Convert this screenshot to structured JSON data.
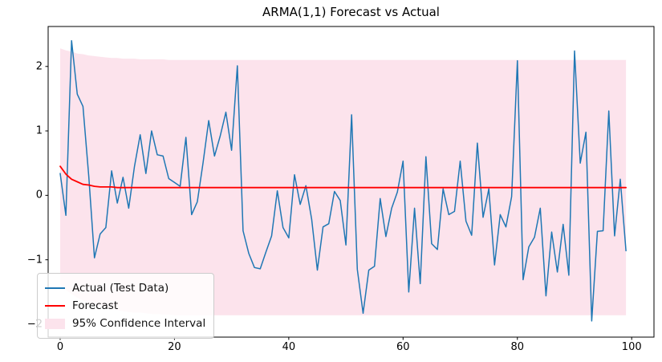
{
  "figure": {
    "title": "ARMA(1,1) Forecast vs Actual",
    "background": "#ffffff"
  },
  "colors": {
    "actual_line": "#1f77b4",
    "forecast_line": "#ff0000",
    "confidence_band": "#fce3ec",
    "axis_spine": "#000000",
    "tick_text": "#000000",
    "legend_border": "#cccccc"
  },
  "legend": {
    "items": [
      {
        "label": "Actual (Test Data)",
        "swatch": "line",
        "color": "#1f77b4"
      },
      {
        "label": "Forecast",
        "swatch": "line",
        "color": "#ff0000"
      },
      {
        "label": "95% Confidence Interval",
        "swatch": "patch",
        "color": "#fce3ec"
      }
    ]
  },
  "chart_data": {
    "type": "line",
    "title": "ARMA(1,1) Forecast vs Actual",
    "xlabel": "",
    "ylabel": "",
    "x_start": 0,
    "x_step": 1,
    "n_points": 100,
    "xlim": [
      -2.1,
      103.9
    ],
    "ylim": [
      -2.2,
      2.62
    ],
    "x_tick_values": [
      0,
      20,
      40,
      60,
      80,
      100
    ],
    "x_tick_labels": [
      "0",
      "20",
      "40",
      "60",
      "80",
      "100"
    ],
    "y_tick_values": [
      -2,
      -1,
      0,
      1,
      2
    ],
    "y_tick_labels": [
      "−2",
      "−1",
      "0",
      "1",
      "2"
    ],
    "grid": false,
    "legend_position": "lower left",
    "series": [
      {
        "name": "Actual (Test Data)",
        "type": "line",
        "color": "#1f77b4",
        "width": 1.5,
        "values": [
          0.34,
          -0.31,
          2.4,
          1.57,
          1.38,
          0.3,
          -0.97,
          -0.6,
          -0.5,
          0.38,
          -0.12,
          0.28,
          -0.2,
          0.45,
          0.94,
          0.34,
          1.0,
          0.63,
          0.61,
          0.26,
          0.2,
          0.14,
          0.9,
          -0.3,
          -0.1,
          0.5,
          1.16,
          0.61,
          0.92,
          1.29,
          0.7,
          2.01,
          -0.55,
          -0.9,
          -1.12,
          -1.14,
          -0.88,
          -0.63,
          0.07,
          -0.5,
          -0.66,
          0.32,
          -0.14,
          0.15,
          -0.37,
          -1.16,
          -0.49,
          -0.44,
          0.06,
          -0.08,
          -0.77,
          1.25,
          -1.15,
          -1.83,
          -1.16,
          -1.1,
          -0.05,
          -0.64,
          -0.2,
          0.05,
          0.53,
          -1.5,
          -0.2,
          -1.37,
          0.6,
          -0.75,
          -0.84,
          0.1,
          -0.3,
          -0.25,
          0.53,
          -0.4,
          -0.62,
          0.81,
          -0.34,
          0.1,
          -1.08,
          -0.3,
          -0.49,
          -0.02,
          2.09,
          -1.31,
          -0.8,
          -0.65,
          -0.2,
          -1.56,
          -0.57,
          -1.19,
          -0.45,
          -1.24,
          2.24,
          0.5,
          0.98,
          -1.95,
          -0.56,
          -0.55,
          1.31,
          -0.63,
          0.25,
          -0.86
        ]
      },
      {
        "name": "Forecast",
        "type": "line",
        "color": "#ff0000",
        "width": 1.8,
        "values": [
          0.45,
          0.33,
          0.25,
          0.21,
          0.17,
          0.16,
          0.14,
          0.13,
          0.13,
          0.13,
          0.12,
          0.12,
          0.12,
          0.12,
          0.12,
          0.12,
          0.12,
          0.12,
          0.12,
          0.12,
          0.12,
          0.12,
          0.12,
          0.12,
          0.12,
          0.12,
          0.12,
          0.12,
          0.12,
          0.12,
          0.12,
          0.12,
          0.12,
          0.12,
          0.12,
          0.12,
          0.12,
          0.12,
          0.12,
          0.12,
          0.12,
          0.12,
          0.12,
          0.12,
          0.12,
          0.12,
          0.12,
          0.12,
          0.12,
          0.12,
          0.12,
          0.12,
          0.12,
          0.12,
          0.12,
          0.12,
          0.12,
          0.12,
          0.12,
          0.12,
          0.12,
          0.12,
          0.12,
          0.12,
          0.12,
          0.12,
          0.12,
          0.12,
          0.12,
          0.12,
          0.12,
          0.12,
          0.12,
          0.12,
          0.12,
          0.12,
          0.12,
          0.12,
          0.12,
          0.12,
          0.12,
          0.12,
          0.12,
          0.12,
          0.12,
          0.12,
          0.12,
          0.12,
          0.12,
          0.12,
          0.12,
          0.12,
          0.12,
          0.12,
          0.12,
          0.12,
          0.12,
          0.12,
          0.12,
          0.12
        ]
      },
      {
        "name": "95% Confidence Interval",
        "type": "band",
        "color": "#fce3ec",
        "upper": [
          2.28,
          2.25,
          2.23,
          2.2,
          2.19,
          2.17,
          2.16,
          2.15,
          2.14,
          2.13,
          2.13,
          2.12,
          2.12,
          2.12,
          2.11,
          2.11,
          2.11,
          2.11,
          2.11,
          2.1,
          2.1,
          2.1,
          2.1,
          2.1,
          2.1,
          2.1,
          2.1,
          2.1,
          2.1,
          2.1,
          2.1,
          2.1,
          2.1,
          2.1,
          2.1,
          2.1,
          2.1,
          2.1,
          2.1,
          2.1,
          2.1,
          2.1,
          2.1,
          2.1,
          2.1,
          2.1,
          2.1,
          2.1,
          2.1,
          2.1,
          2.1,
          2.1,
          2.1,
          2.1,
          2.1,
          2.1,
          2.1,
          2.1,
          2.1,
          2.1,
          2.1,
          2.1,
          2.1,
          2.1,
          2.1,
          2.1,
          2.1,
          2.1,
          2.1,
          2.1,
          2.1,
          2.1,
          2.1,
          2.1,
          2.1,
          2.1,
          2.1,
          2.1,
          2.1,
          2.1,
          2.1,
          2.1,
          2.1,
          2.1,
          2.1,
          2.1,
          2.1,
          2.1,
          2.1,
          2.1,
          2.1,
          2.1,
          2.1,
          2.1,
          2.1,
          2.1,
          2.1,
          2.1,
          2.1,
          2.1
        ],
        "lower": [
          -1.39,
          -1.47,
          -1.53,
          -1.59,
          -1.63,
          -1.67,
          -1.7,
          -1.72,
          -1.75,
          -1.77,
          -1.78,
          -1.8,
          -1.81,
          -1.82,
          -1.82,
          -1.83,
          -1.84,
          -1.84,
          -1.85,
          -1.85,
          -1.86,
          -1.86,
          -1.86,
          -1.86,
          -1.86,
          -1.86,
          -1.86,
          -1.86,
          -1.86,
          -1.86,
          -1.86,
          -1.86,
          -1.86,
          -1.86,
          -1.86,
          -1.86,
          -1.86,
          -1.86,
          -1.86,
          -1.86,
          -1.86,
          -1.86,
          -1.86,
          -1.86,
          -1.86,
          -1.86,
          -1.86,
          -1.86,
          -1.86,
          -1.86,
          -1.86,
          -1.86,
          -1.86,
          -1.86,
          -1.86,
          -1.86,
          -1.86,
          -1.86,
          -1.86,
          -1.86,
          -1.86,
          -1.86,
          -1.86,
          -1.86,
          -1.86,
          -1.86,
          -1.86,
          -1.86,
          -1.86,
          -1.86,
          -1.86,
          -1.86,
          -1.86,
          -1.86,
          -1.86,
          -1.86,
          -1.86,
          -1.86,
          -1.86,
          -1.86,
          -1.86,
          -1.86,
          -1.86,
          -1.86,
          -1.86,
          -1.86,
          -1.86,
          -1.86,
          -1.86,
          -1.86,
          -1.86,
          -1.86,
          -1.86,
          -1.86,
          -1.86,
          -1.86,
          -1.86,
          -1.86,
          -1.86,
          -1.86
        ]
      }
    ]
  }
}
